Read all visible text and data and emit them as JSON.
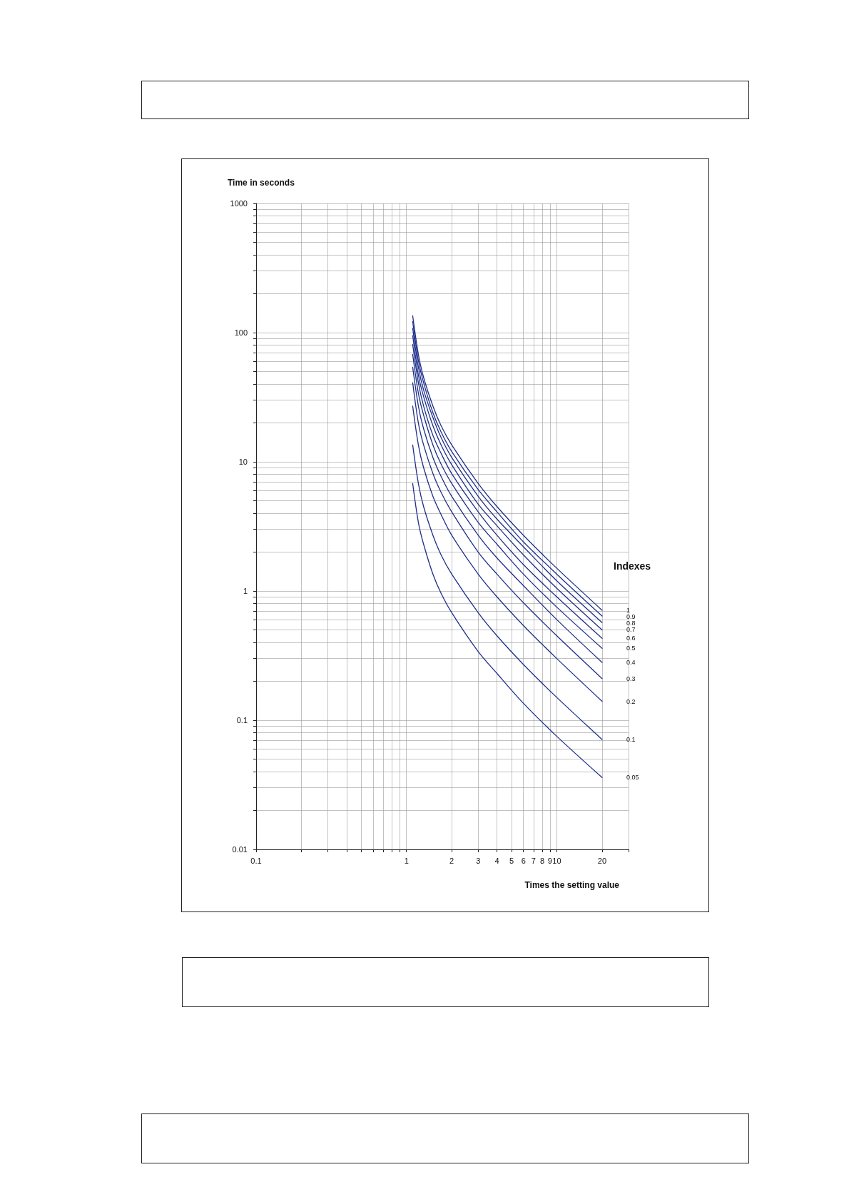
{
  "chart_data": {
    "type": "line",
    "xlabel": "Times the setting value",
    "ylabel": "Time in seconds",
    "legend_title": "Indexes",
    "log": "xy",
    "grid": true,
    "legend": false,
    "marker": "none",
    "line_style": "solid",
    "xlim": [
      0.1,
      30
    ],
    "xticks": [
      0.1,
      {
        "value": 0.2,
        "label": null
      },
      {
        "value": 0.3,
        "label": null
      },
      {
        "value": 0.4,
        "label": null
      },
      {
        "value": 0.5,
        "label": null
      },
      {
        "value": 0.6,
        "label": null
      },
      {
        "value": 0.7,
        "label": null
      },
      {
        "value": 0.8,
        "label": null
      },
      {
        "value": 0.9,
        "label": null
      },
      1,
      2,
      3,
      4,
      5,
      6,
      7,
      8,
      9,
      10,
      20,
      {
        "value": 30,
        "label": null
      }
    ],
    "ylim": [
      0.01,
      1000
    ],
    "yticks": [
      0.01,
      {
        "value": 0.02,
        "label": null
      },
      {
        "value": 0.03,
        "label": null
      },
      {
        "value": 0.04,
        "label": null
      },
      {
        "value": 0.05,
        "label": null
      },
      {
        "value": 0.06,
        "label": null
      },
      {
        "value": 0.07,
        "label": null
      },
      {
        "value": 0.08,
        "label": null
      },
      {
        "value": 0.09,
        "label": null
      },
      0.1,
      {
        "value": 0.2,
        "label": null
      },
      {
        "value": 0.3,
        "label": null
      },
      {
        "value": 0.4,
        "label": null
      },
      {
        "value": 0.5,
        "label": null
      },
      {
        "value": 0.6,
        "label": null
      },
      {
        "value": 0.7,
        "label": null
      },
      {
        "value": 0.8,
        "label": null
      },
      {
        "value": 0.9,
        "label": null
      },
      1,
      {
        "value": 2,
        "label": null
      },
      {
        "value": 3,
        "label": null
      },
      {
        "value": 4,
        "label": null
      },
      {
        "value": 5,
        "label": null
      },
      {
        "value": 6,
        "label": null
      },
      {
        "value": 7,
        "label": null
      },
      {
        "value": 8,
        "label": null
      },
      {
        "value": 9,
        "label": null
      },
      10,
      {
        "value": 20,
        "label": null
      },
      {
        "value": 30,
        "label": null
      },
      {
        "value": 40,
        "label": null
      },
      {
        "value": 50,
        "label": null
      },
      {
        "value": 60,
        "label": null
      },
      {
        "value": 70,
        "label": null
      },
      {
        "value": 80,
        "label": null
      },
      {
        "value": 90,
        "label": null
      },
      100,
      {
        "value": 200,
        "label": null
      },
      {
        "value": 300,
        "label": null
      },
      {
        "value": 400,
        "label": null
      },
      {
        "value": 500,
        "label": null
      },
      {
        "value": 600,
        "label": null
      },
      {
        "value": 700,
        "label": null
      },
      {
        "value": 800,
        "label": null
      },
      {
        "value": 900,
        "label": null
      },
      1000
    ],
    "x": [
      1.1,
      1.2,
      1.3,
      1.5,
      1.7,
      2,
      3,
      4,
      6,
      10,
      20
    ],
    "series": [
      {
        "name": "1",
        "color": "#1f2f8a",
        "values": [
          135,
          68,
          45,
          27,
          19,
          13.5,
          6.8,
          4.5,
          2.7,
          1.5,
          0.71
        ]
      },
      {
        "name": "0.9",
        "color": "#1f2f8a",
        "values": [
          122,
          61,
          41,
          24,
          17,
          12,
          6.1,
          4.1,
          2.4,
          1.35,
          0.64
        ]
      },
      {
        "name": "0.8",
        "color": "#1f2f8a",
        "values": [
          108,
          54,
          36,
          22,
          15.4,
          10.8,
          5.4,
          3.6,
          2.2,
          1.2,
          0.57
        ]
      },
      {
        "name": "0.7",
        "color": "#1f2f8a",
        "values": [
          95,
          47,
          32,
          19,
          13.5,
          9.5,
          4.7,
          3.2,
          1.9,
          1.05,
          0.5
        ]
      },
      {
        "name": "0.6",
        "color": "#1f2f8a",
        "values": [
          81,
          41,
          27,
          16,
          11.6,
          8.1,
          4.1,
          2.7,
          1.6,
          0.9,
          0.43
        ]
      },
      {
        "name": "0.5",
        "color": "#1f2f8a",
        "values": [
          68,
          34,
          23,
          13.5,
          9.6,
          6.8,
          3.4,
          2.3,
          1.35,
          0.75,
          0.36
        ]
      },
      {
        "name": "0.4",
        "color": "#1f2f8a",
        "values": [
          54,
          27,
          18,
          10.8,
          7.7,
          5.4,
          2.7,
          1.8,
          1.1,
          0.6,
          0.28
        ]
      },
      {
        "name": "0.3",
        "color": "#1f2f8a",
        "values": [
          41,
          20,
          13.5,
          8.1,
          5.8,
          4.1,
          2,
          1.35,
          0.81,
          0.45,
          0.21
        ]
      },
      {
        "name": "0.2",
        "color": "#1f2f8a",
        "values": [
          27,
          13.5,
          9,
          5.4,
          3.9,
          2.7,
          1.35,
          0.9,
          0.54,
          0.3,
          0.14
        ]
      },
      {
        "name": "0.1",
        "color": "#1f2f8a",
        "values": [
          13.5,
          6.8,
          4.5,
          2.7,
          1.9,
          1.35,
          0.68,
          0.45,
          0.27,
          0.15,
          0.071
        ]
      },
      {
        "name": "0.05",
        "color": "#1f2f8a",
        "values": [
          6.8,
          3.4,
          2.3,
          1.35,
          0.96,
          0.68,
          0.34,
          0.23,
          0.135,
          0.075,
          0.036
        ]
      }
    ]
  }
}
